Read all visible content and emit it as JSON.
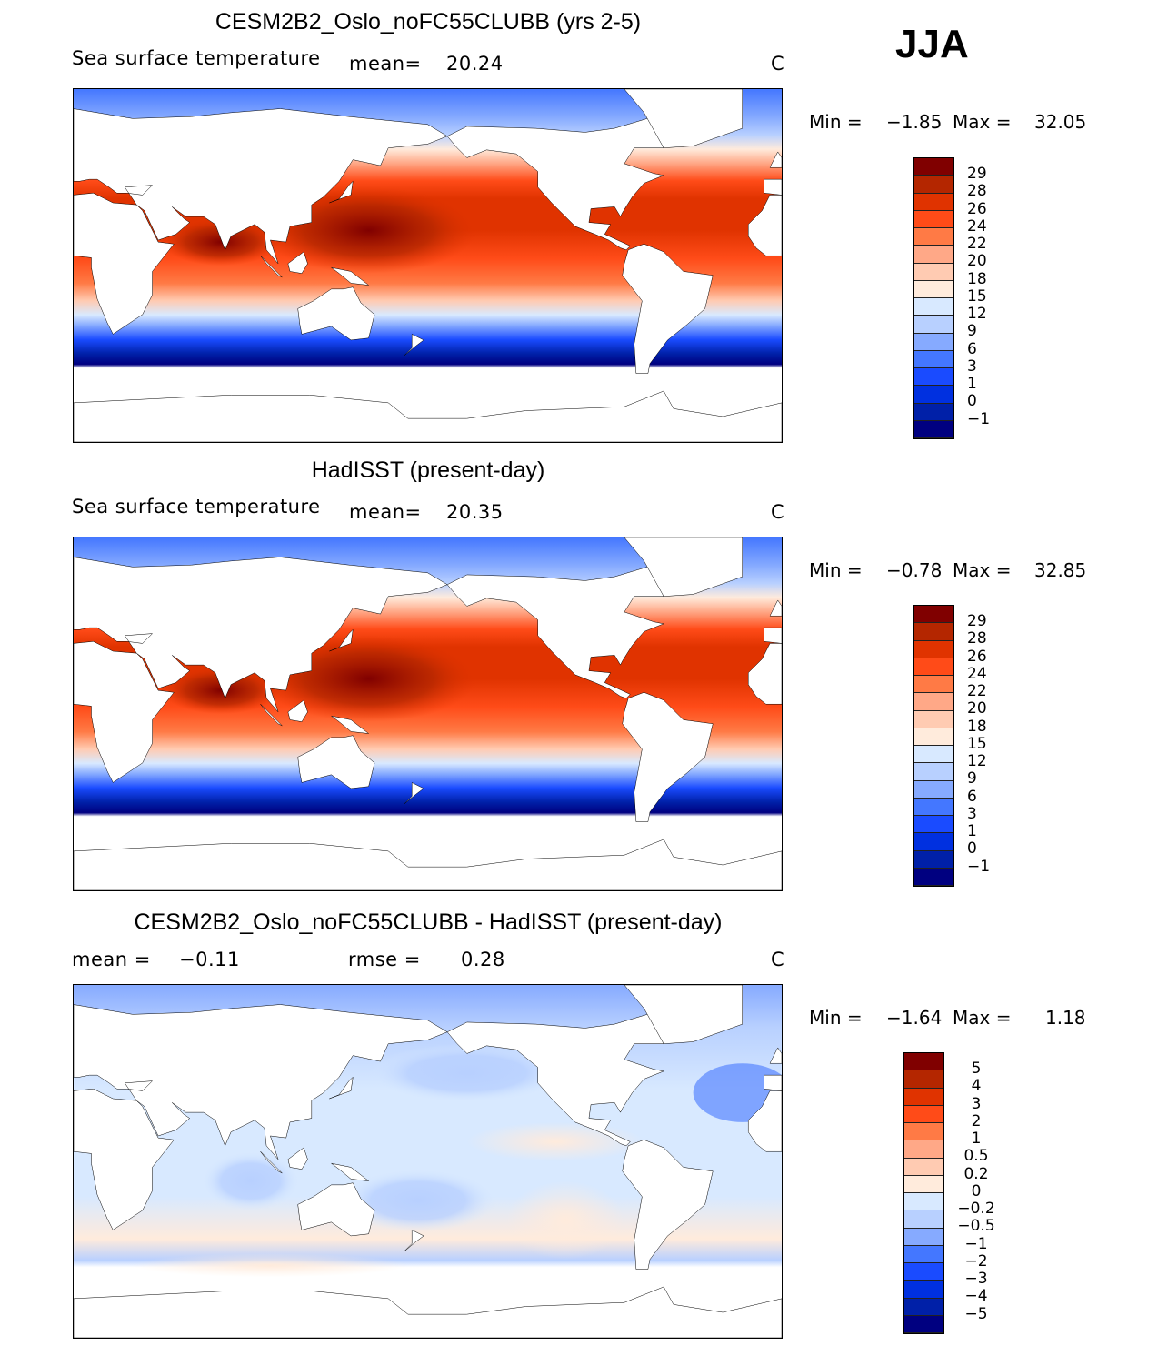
{
  "season": "JJA",
  "colors": [
    "#800000",
    "#b42600",
    "#e03300",
    "#ff4b18",
    "#ff7a45",
    "#ffa887",
    "#ffcbb2",
    "#ffebdc",
    "#d8e9ff",
    "#b8d0ff",
    "#86aaff",
    "#4477ff",
    "#1a4bff",
    "#0030e0",
    "#0020a8",
    "#000080"
  ],
  "panels": [
    {
      "title": "CESM2B2_Oslo_noFC55CLUBB (yrs 2-5)",
      "variable": "Sea surface temperature",
      "mean_label": "mean=",
      "mean": "20.24",
      "units": "C",
      "min_label": "Min =",
      "min": "−1.85",
      "max_label": "Max =",
      "max": "32.05",
      "levels": [
        "29",
        "28",
        "26",
        "24",
        "22",
        "20",
        "18",
        "15",
        "12",
        "9",
        "6",
        "3",
        "1",
        "0",
        "−1"
      ]
    },
    {
      "title": "HadISST (present-day)",
      "variable": "Sea surface temperature",
      "mean_label": "mean=",
      "mean": "20.35",
      "units": "C",
      "min_label": "Min =",
      "min": "−0.78",
      "max_label": "Max =",
      "max": "32.85",
      "levels": [
        "29",
        "28",
        "26",
        "24",
        "22",
        "20",
        "18",
        "15",
        "12",
        "9",
        "6",
        "3",
        "1",
        "0",
        "−1"
      ]
    },
    {
      "title": "CESM2B2_Oslo_noFC55CLUBB - HadISST (present-day)",
      "mean_label": "mean =",
      "mean": "−0.11",
      "rmse_label": "rmse =",
      "rmse": "0.28",
      "units": "C",
      "min_label": "Min =",
      "min": "−1.64",
      "max_label": "Max =",
      "max": "1.18",
      "levels": [
        "5",
        "4",
        "3",
        "2",
        "1",
        "0.5",
        "0.2",
        "0",
        "−0.2",
        "−0.5",
        "−1",
        "−2",
        "−3",
        "−4",
        "−5"
      ]
    }
  ]
}
